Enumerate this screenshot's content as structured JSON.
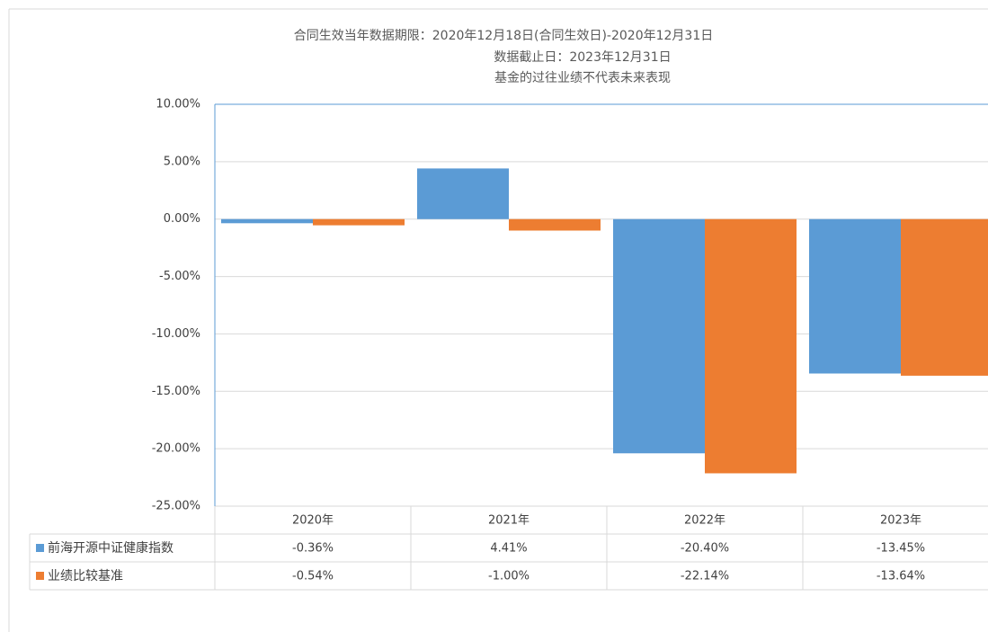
{
  "chart_data": {
    "type": "bar",
    "title": "合同生效当年数据期限：2020年12月18日(合同生效日)-2020年12月31日",
    "subtitle": "数据截止日：2023年12月31日",
    "annotation": "基金的过往业绩不代表未来表现",
    "categories": [
      "2020年",
      "2021年",
      "2022年",
      "2023年"
    ],
    "series": [
      {
        "name": "前海开源中证健康指数",
        "color": "#5b9bd5",
        "values": [
          -0.36,
          4.41,
          -20.4,
          -13.45
        ],
        "value_labels": [
          "-0.36%",
          "4.41%",
          "-20.40%",
          "-13.45%"
        ]
      },
      {
        "name": "业绩比较基准",
        "color": "#ed7d31",
        "values": [
          -0.54,
          -1.0,
          -22.14,
          -13.64
        ],
        "value_labels": [
          "-0.54%",
          "-1.00%",
          "-22.14%",
          "-13.64%"
        ]
      }
    ],
    "ylim": [
      -25,
      10
    ],
    "yticks": [
      {
        "value": -25,
        "label": "-25.00%"
      },
      {
        "value": -20,
        "label": "-20.00%"
      },
      {
        "value": -15,
        "label": "-15.00%"
      },
      {
        "value": -10,
        "label": "-10.00%"
      },
      {
        "value": -5,
        "label": "-5.00%"
      },
      {
        "value": 0,
        "label": "0.00%"
      },
      {
        "value": 5,
        "label": "5.00%"
      },
      {
        "value": 10,
        "label": "10.00%"
      }
    ],
    "grid": true
  }
}
